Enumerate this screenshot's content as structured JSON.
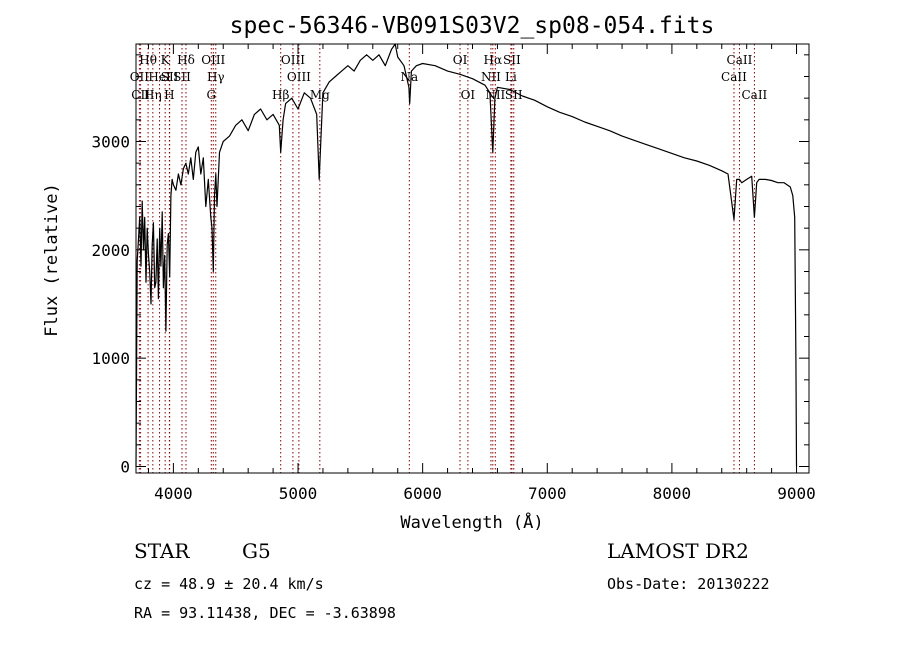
{
  "chart_data": {
    "type": "line",
    "title": "spec-56346-VB091S03V2_sp08-054.fits",
    "xlabel": "Wavelength (Å)",
    "ylabel": "Flux (relative)",
    "xlim": [
      3700,
      9100
    ],
    "ylim": [
      -60,
      3900
    ],
    "xticks": [
      4000,
      5000,
      6000,
      7000,
      8000,
      9000
    ],
    "yticks": [
      0,
      1000,
      2000,
      3000
    ],
    "grid": false,
    "line_color": "#000000",
    "marker_color": "#8b0000",
    "series": [
      {
        "x": [
          3700,
          3710,
          3720,
          3730,
          3740,
          3750,
          3760,
          3770,
          3780,
          3790,
          3800,
          3810,
          3820,
          3830,
          3840,
          3850,
          3860,
          3870,
          3880,
          3890,
          3900,
          3910,
          3920,
          3930,
          3940,
          3950,
          3960,
          3970,
          3980,
          3990,
          4000,
          4020,
          4040,
          4060,
          4080,
          4100,
          4120,
          4140,
          4160,
          4180,
          4200,
          4220,
          4240,
          4260,
          4280,
          4300,
          4310,
          4320,
          4330,
          4340,
          4350,
          4370,
          4400,
          4450,
          4500,
          4550,
          4600,
          4650,
          4700,
          4750,
          4800,
          4850,
          4861,
          4880,
          4900,
          4950,
          5000,
          5050,
          5100,
          5150,
          5170,
          5183,
          5200,
          5250,
          5300,
          5350,
          5400,
          5450,
          5500,
          5550,
          5600,
          5650,
          5700,
          5750,
          5780,
          5800,
          5850,
          5890,
          5896,
          5910,
          5950,
          6000,
          6100,
          6200,
          6300,
          6400,
          6500,
          6540,
          6563,
          6580,
          6600,
          6700,
          6800,
          6900,
          7000,
          7100,
          7200,
          7300,
          7400,
          7500,
          7600,
          7700,
          7800,
          7900,
          8000,
          8100,
          8200,
          8300,
          8400,
          8450,
          8498,
          8520,
          8542,
          8560,
          8600,
          8640,
          8662,
          8680,
          8700,
          8750,
          8800,
          8850,
          8900,
          8950,
          8970,
          8985,
          8995,
          9000
        ],
        "y": [
          0,
          1900,
          2100,
          2300,
          1850,
          2450,
          2000,
          2300,
          1700,
          2200,
          1950,
          1800,
          1500,
          2050,
          2250,
          1650,
          1700,
          2100,
          1550,
          2200,
          1850,
          2350,
          1650,
          1950,
          1250,
          2050,
          2150,
          1750,
          2500,
          2650,
          2600,
          2550,
          2700,
          2600,
          2750,
          2800,
          2700,
          2850,
          2650,
          2900,
          2950,
          2700,
          2850,
          2400,
          2650,
          2300,
          2200,
          1800,
          2500,
          2700,
          2400,
          2900,
          3000,
          3050,
          3150,
          3200,
          3100,
          3250,
          3300,
          3200,
          3250,
          3150,
          2900,
          3200,
          3350,
          3400,
          3300,
          3450,
          3400,
          3250,
          2650,
          3000,
          3450,
          3550,
          3600,
          3650,
          3700,
          3650,
          3750,
          3800,
          3750,
          3800,
          3700,
          3850,
          3900,
          3780,
          3700,
          3500,
          3350,
          3650,
          3700,
          3720,
          3700,
          3650,
          3620,
          3580,
          3520,
          3450,
          2900,
          3400,
          3500,
          3480,
          3420,
          3380,
          3320,
          3270,
          3230,
          3180,
          3140,
          3100,
          3050,
          3010,
          2970,
          2930,
          2890,
          2850,
          2820,
          2780,
          2730,
          2700,
          2280,
          2650,
          2650,
          2620,
          2650,
          2680,
          2300,
          2620,
          2650,
          2650,
          2640,
          2620,
          2620,
          2580,
          2500,
          2300,
          1000,
          0
        ]
      }
    ],
    "lines": [
      {
        "label": "Hθ",
        "x": 3797,
        "row": 0
      },
      {
        "label": "OII",
        "x": 3727,
        "row": 1
      },
      {
        "label": "CII",
        "x": 3737,
        "row": 2
      },
      {
        "label": "Hη",
        "x": 3835,
        "row": 2
      },
      {
        "label": "HeI",
        "x": 3889,
        "row": 1
      },
      {
        "label": "K",
        "x": 3934,
        "row": 0
      },
      {
        "label": "SII",
        "x": 3970,
        "row": 1
      },
      {
        "label": "H",
        "x": 3968,
        "row": 2
      },
      {
        "label": "Hδ",
        "x": 4101,
        "row": 0
      },
      {
        "label": "SII",
        "x": 4069,
        "row": 1
      },
      {
        "label": "OIII",
        "x": 4320,
        "row": 0
      },
      {
        "label": "Hγ",
        "x": 4340,
        "row": 1
      },
      {
        "label": "G",
        "x": 4304,
        "row": 2
      },
      {
        "label": "Hβ",
        "x": 4861,
        "row": 3
      },
      {
        "label": "OIII",
        "x": 4959,
        "row": 0
      },
      {
        "label": "OIII",
        "x": 5007,
        "row": 1
      },
      {
        "label": "Mg",
        "x": 5175,
        "row": 3
      },
      {
        "label": "Na",
        "x": 5893,
        "row": 1
      },
      {
        "label": "OI",
        "x": 6300,
        "row": 0
      },
      {
        "label": "OI",
        "x": 6363,
        "row": 3
      },
      {
        "label": "Hα",
        "x": 6563,
        "row": 0
      },
      {
        "label": "SII",
        "x": 6716,
        "row": 0
      },
      {
        "label": "NII",
        "x": 6548,
        "row": 1
      },
      {
        "label": "Li",
        "x": 6708,
        "row": 1
      },
      {
        "label": "NII",
        "x": 6583,
        "row": 3
      },
      {
        "label": "SII",
        "x": 6731,
        "row": 3
      },
      {
        "label": "CaII",
        "x": 8542,
        "row": 0
      },
      {
        "label": "CaII",
        "x": 8498,
        "row": 1
      },
      {
        "label": "CaII",
        "x": 8662,
        "row": 2
      }
    ]
  },
  "info": {
    "object_class": "STAR",
    "subclass": "G5",
    "survey": "LAMOST DR2",
    "cz": "cz = 48.9 ± 20.4 km/s",
    "obs_date": "Obs-Date: 20130222",
    "coords": "RA =  93.11438, DEC =  -3.63898"
  }
}
